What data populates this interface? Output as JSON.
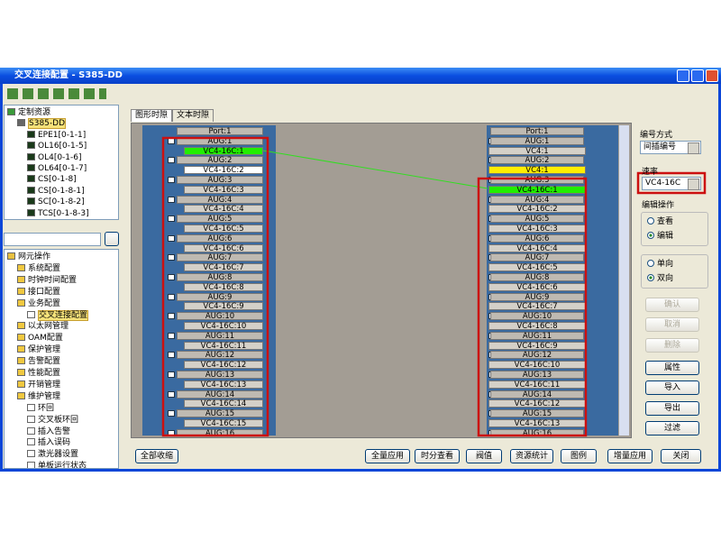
{
  "window": {
    "title": "交叉连接配置 - S385-DD"
  },
  "top_tree": {
    "name": "定制资源",
    "children": [
      {
        "name": "S385-DD",
        "selected": true,
        "children": [
          {
            "name": "EPE1[0-1-1]"
          },
          {
            "name": "OL16[0-1-5]"
          },
          {
            "name": "OL4[0-1-6]"
          },
          {
            "name": "OL64[0-1-7]"
          },
          {
            "name": "CS[0-1-8]"
          },
          {
            "name": "CS[0-1-8-1]"
          },
          {
            "name": "SC[0-1-8-2]"
          },
          {
            "name": "TCS[0-1-8-3]"
          }
        ]
      }
    ]
  },
  "bottom_tree": {
    "name": "网元操作",
    "children": [
      {
        "name": "系统配置"
      },
      {
        "name": "时钟时间配置"
      },
      {
        "name": "接口配置"
      },
      {
        "name": "业务配置",
        "children": [
          {
            "name": "交叉连接配置",
            "selected": true
          }
        ]
      },
      {
        "name": "以太网管理"
      },
      {
        "name": "OAM配置"
      },
      {
        "name": "保护管理"
      },
      {
        "name": "告警配置"
      },
      {
        "name": "性能配置"
      },
      {
        "name": "开销管理"
      },
      {
        "name": "维护管理",
        "children": [
          {
            "name": "环回"
          },
          {
            "name": "交叉板环回"
          },
          {
            "name": "插入告警"
          },
          {
            "name": "插入误码"
          },
          {
            "name": "激光器设置"
          },
          {
            "name": "单板运行状态"
          }
        ]
      }
    ]
  },
  "tabs": [
    "图形时隙",
    "文本时隙"
  ],
  "left_slots": [
    "Port:1",
    "AUG:1",
    {
      "text": "VC4-16C:1",
      "color": "#22ee00"
    },
    "AUG:2",
    {
      "text": "VC4-16C:2",
      "color": "#ffffff"
    },
    "AUG:3",
    "VC4-16C:3",
    "AUG:4",
    "VC4-16C:4",
    "AUG:5",
    "VC4-16C:5",
    "AUG:6",
    "VC4-16C:6",
    "AUG:7",
    "VC4-16C:7",
    "AUG:8",
    "VC4-16C:8",
    "AUG:9",
    "VC4-16C:9",
    "AUG:10",
    "VC4-16C:10",
    "AUG:11",
    "VC4-16C:11",
    "AUG:12",
    "VC4-16C:12",
    "AUG:13",
    "VC4-16C:13",
    "AUG:14",
    "VC4-16C:14",
    "AUG:15",
    "VC4-16C:15",
    "AUG:16"
  ],
  "right_slots": [
    "Port:1",
    "AUG:1",
    "VC4:1",
    "AUG:2",
    {
      "text": "VC4:1",
      "color": "#ffee00"
    },
    "AUG:3",
    {
      "text": "VC4-16C:1",
      "color": "#22ee00"
    },
    "AUG:4",
    "VC4-16C:2",
    "AUG:5",
    "VC4-16C:3",
    "AUG:6",
    "VC4-16C:4",
    "AUG:7",
    "VC4-16C:5",
    "AUG:8",
    "VC4-16C:6",
    "AUG:9",
    "VC4-16C:7",
    "AUG:10",
    "VC4-16C:8",
    "AUG:11",
    "VC4-16C:9",
    "AUG:12",
    "VC4-16C:10",
    "AUG:13",
    "VC4-16C:11",
    "AUG:14",
    "VC4-16C:12",
    "AUG:15",
    "VC4-16C:13",
    "AUG:16"
  ],
  "options": {
    "numbering_label": "编号方式",
    "numbering_value": "间插编号",
    "rate_label": "速率",
    "rate_value": "VC4-16C",
    "edit_label": "编辑操作",
    "mode": [
      {
        "text": "查看",
        "checked": false
      },
      {
        "text": "编辑",
        "checked": true
      }
    ],
    "direction": [
      {
        "text": "单向",
        "checked": false
      },
      {
        "text": "双向",
        "checked": true
      }
    ]
  },
  "side_buttons": [
    {
      "text": "确认",
      "enabled": false
    },
    {
      "text": "取消",
      "enabled": false
    },
    {
      "text": "删除",
      "enabled": false
    },
    {
      "text": "属性",
      "enabled": true
    },
    {
      "text": "导入",
      "enabled": true
    },
    {
      "text": "导出",
      "enabled": true
    },
    {
      "text": "过滤",
      "enabled": true
    }
  ],
  "bottom_buttons": [
    "全部收缩",
    "全量应用",
    "时分查看",
    "阀值",
    "资源统计",
    "图例",
    "增量应用",
    "关闭"
  ]
}
